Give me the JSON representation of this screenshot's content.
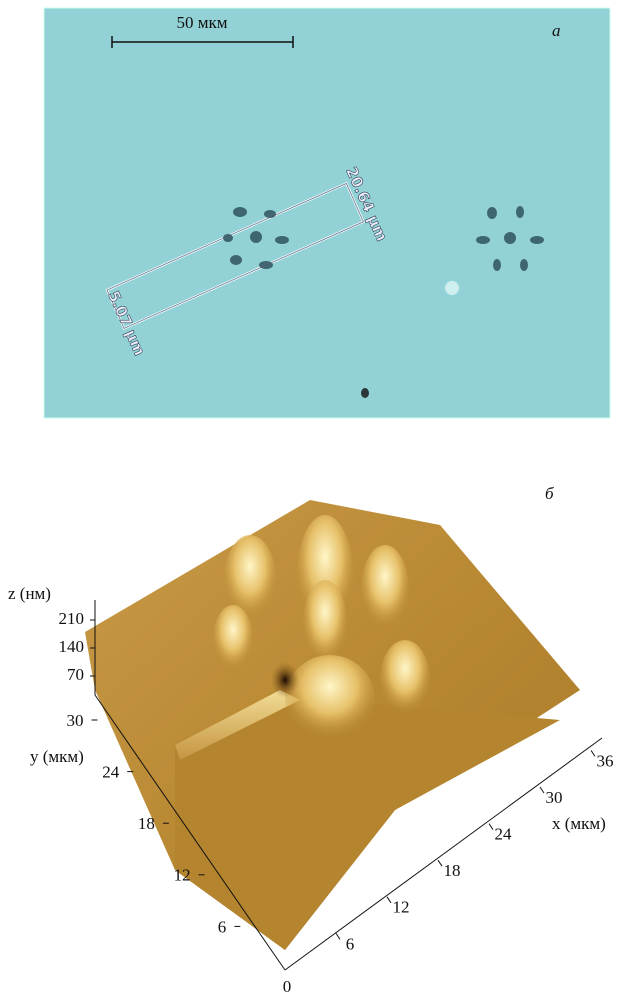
{
  "panel_a": {
    "label": "а",
    "scale_bar": "50 мкм",
    "measurements": [
      "20.64 μm",
      "5.07 μm"
    ]
  },
  "panel_b": {
    "label": "б",
    "z_axis": {
      "label": "z (нм)",
      "ticks": [
        70,
        140,
        210
      ]
    },
    "y_axis": {
      "label": "y (мкм)",
      "ticks": [
        6,
        12,
        18,
        24,
        30
      ]
    },
    "x_axis": {
      "label": "x (мкм)",
      "origin": 0,
      "ticks": [
        6,
        12,
        18,
        24,
        30,
        36
      ]
    }
  }
}
